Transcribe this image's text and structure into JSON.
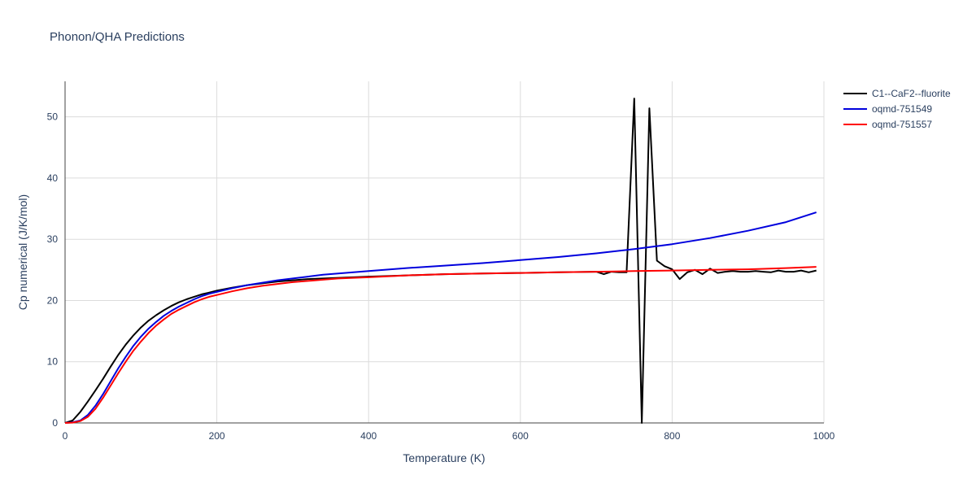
{
  "chart_data": {
    "type": "line",
    "title": "Phonon/QHA Predictions",
    "xlabel": "Temperature (K)",
    "ylabel": "Cp numerical (J/K/mol)",
    "xlim": [
      0,
      1000
    ],
    "ylim": [
      0,
      55.8
    ],
    "xticks": [
      0,
      200,
      400,
      600,
      800,
      1000
    ],
    "yticks": [
      0,
      10,
      20,
      30,
      40,
      50
    ],
    "grid": true,
    "legend_position": "top-right",
    "series": [
      {
        "name": "C1--CaF2--fluorite",
        "color": "#000000",
        "x": [
          0,
          10,
          20,
          30,
          40,
          50,
          60,
          70,
          80,
          90,
          100,
          110,
          120,
          130,
          140,
          150,
          160,
          170,
          180,
          190,
          200,
          220,
          240,
          260,
          280,
          300,
          320,
          340,
          360,
          380,
          400,
          450,
          500,
          550,
          600,
          650,
          700,
          710,
          720,
          730,
          740,
          750,
          760,
          770,
          780,
          790,
          800,
          810,
          820,
          830,
          840,
          850,
          860,
          870,
          880,
          890,
          900,
          910,
          920,
          930,
          940,
          950,
          960,
          970,
          980,
          990
        ],
        "y": [
          0,
          0.4,
          1.8,
          3.5,
          5.3,
          7.2,
          9.2,
          11.1,
          12.8,
          14.3,
          15.6,
          16.7,
          17.6,
          18.4,
          19.1,
          19.7,
          20.2,
          20.6,
          21.0,
          21.3,
          21.6,
          22.1,
          22.5,
          22.8,
          23.1,
          23.3,
          23.5,
          23.6,
          23.7,
          23.8,
          23.9,
          24.1,
          24.3,
          24.4,
          24.5,
          24.6,
          24.7,
          24.3,
          24.7,
          24.6,
          24.6,
          53,
          0,
          51.4,
          26.5,
          25.6,
          25.1,
          23.5,
          24.6,
          25.0,
          24.3,
          25.2,
          24.5,
          24.7,
          24.8,
          24.7,
          24.7,
          24.8,
          24.7,
          24.6,
          24.9,
          24.7,
          24.7,
          24.9,
          24.6,
          24.9
        ]
      },
      {
        "name": "oqmd-751549",
        "color": "#0000dd",
        "x": [
          0,
          10,
          20,
          30,
          40,
          50,
          60,
          70,
          80,
          90,
          100,
          110,
          120,
          130,
          140,
          150,
          160,
          170,
          180,
          190,
          200,
          220,
          240,
          260,
          280,
          300,
          320,
          340,
          360,
          380,
          400,
          450,
          500,
          550,
          600,
          650,
          700,
          750,
          800,
          850,
          900,
          950,
          990
        ],
        "y": [
          0,
          0.1,
          0.4,
          1.3,
          2.8,
          4.7,
          6.8,
          8.9,
          10.8,
          12.6,
          14.1,
          15.4,
          16.5,
          17.5,
          18.3,
          19.0,
          19.6,
          20.2,
          20.7,
          21.1,
          21.4,
          22.0,
          22.5,
          22.9,
          23.3,
          23.6,
          23.9,
          24.2,
          24.4,
          24.6,
          24.8,
          25.3,
          25.7,
          26.1,
          26.6,
          27.1,
          27.7,
          28.4,
          29.2,
          30.2,
          31.4,
          32.8,
          34.4
        ]
      },
      {
        "name": "oqmd-751557",
        "color": "#ff0000",
        "x": [
          0,
          10,
          20,
          30,
          40,
          50,
          60,
          70,
          80,
          90,
          100,
          110,
          120,
          130,
          140,
          150,
          160,
          170,
          180,
          190,
          200,
          220,
          240,
          260,
          280,
          300,
          320,
          340,
          360,
          380,
          400,
          450,
          500,
          550,
          600,
          650,
          700,
          750,
          800,
          850,
          900,
          950,
          990
        ],
        "y": [
          0,
          0.05,
          0.3,
          1.0,
          2.3,
          4.1,
          6.1,
          8.1,
          10.0,
          11.8,
          13.3,
          14.7,
          15.9,
          16.9,
          17.8,
          18.5,
          19.1,
          19.7,
          20.2,
          20.6,
          20.9,
          21.5,
          22.0,
          22.4,
          22.7,
          23.0,
          23.2,
          23.4,
          23.6,
          23.7,
          23.8,
          24.1,
          24.3,
          24.4,
          24.5,
          24.6,
          24.7,
          24.8,
          24.9,
          25.0,
          25.1,
          25.3,
          25.5
        ]
      }
    ]
  }
}
